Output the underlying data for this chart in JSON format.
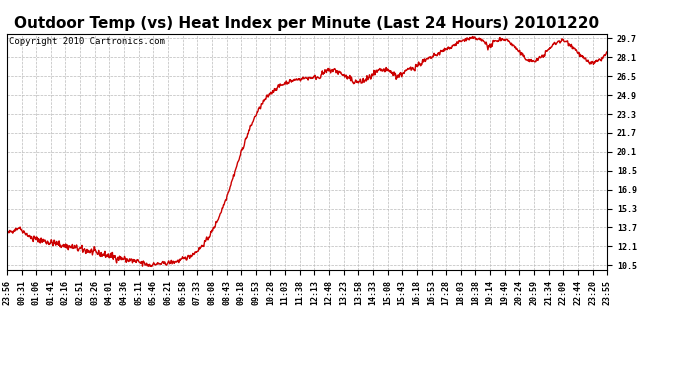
{
  "title": "Outdoor Temp (vs) Heat Index per Minute (Last 24 Hours) 20101220",
  "copyright_text": "Copyright 2010 Cartronics.com",
  "line_color": "#cc0000",
  "background_color": "#ffffff",
  "grid_color": "#bbbbbb",
  "yticks": [
    10.5,
    12.1,
    13.7,
    15.3,
    16.9,
    18.5,
    20.1,
    21.7,
    23.3,
    24.9,
    26.5,
    28.1,
    29.7
  ],
  "ylim": [
    10.1,
    30.1
  ],
  "xtick_labels": [
    "23:56",
    "00:31",
    "01:06",
    "01:41",
    "02:16",
    "02:51",
    "03:26",
    "04:01",
    "04:36",
    "05:11",
    "05:46",
    "06:21",
    "06:58",
    "07:33",
    "08:08",
    "08:43",
    "09:18",
    "09:53",
    "10:28",
    "11:03",
    "11:38",
    "12:13",
    "12:48",
    "13:23",
    "13:58",
    "14:33",
    "15:08",
    "15:43",
    "16:18",
    "16:53",
    "17:28",
    "18:03",
    "18:38",
    "19:14",
    "19:49",
    "20:24",
    "20:59",
    "21:34",
    "22:09",
    "22:44",
    "23:20",
    "23:55"
  ],
  "title_fontsize": 11,
  "copyright_fontsize": 6.5,
  "tick_fontsize": 6,
  "line_width": 1.0
}
